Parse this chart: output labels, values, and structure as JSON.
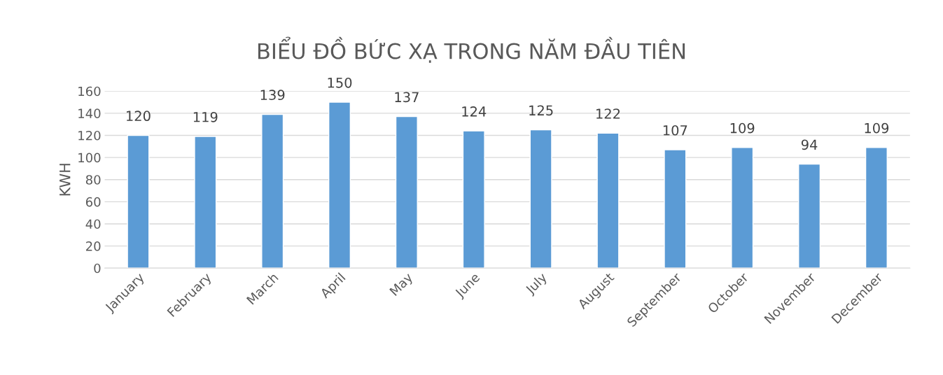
{
  "chart_data": {
    "type": "bar",
    "title": "BIỂU ĐỒ BỨC XẠ TRONG NĂM ĐẦU TIÊN",
    "ylabel": "KWH",
    "categories": [
      "January",
      "February",
      "March",
      "April",
      "May",
      "June",
      "July",
      "August",
      "September",
      "October",
      "November",
      "December"
    ],
    "values": [
      120,
      119,
      139,
      150,
      137,
      124,
      125,
      122,
      107,
      109,
      94,
      109
    ],
    "color": "#5b9bd5",
    "ylim": [
      0,
      160
    ],
    "yticks": [
      0,
      20,
      40,
      60,
      80,
      100,
      120,
      140,
      160
    ],
    "grid": "y",
    "data_labels": true
  }
}
